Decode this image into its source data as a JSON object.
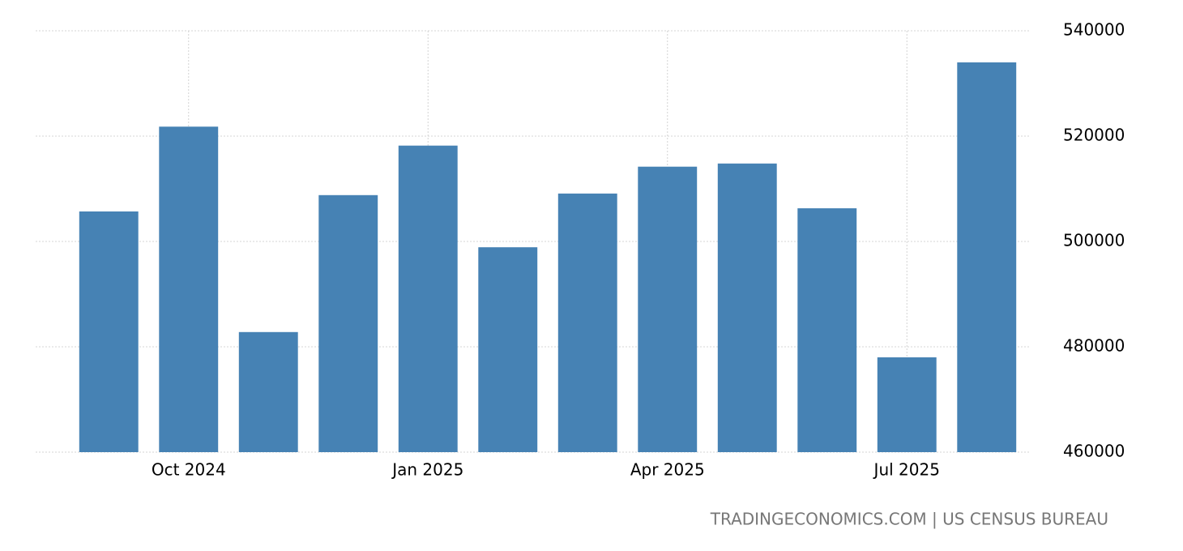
{
  "chart_data": {
    "type": "bar",
    "categories": [
      null,
      "Oct 2024",
      null,
      null,
      "Jan 2025",
      null,
      null,
      "Apr 2025",
      null,
      null,
      "Jul 2025",
      null
    ],
    "values": [
      505700,
      521800,
      482800,
      508800,
      518200,
      498900,
      509100,
      514200,
      514800,
      506300,
      478000,
      534000
    ],
    "color": "#4682b4",
    "ylim": [
      460000,
      540000
    ],
    "yticks": [
      460000,
      480000,
      500000,
      520000,
      540000
    ],
    "grid": true,
    "source": "TRADINGECONOMICS.COM | US CENSUS BUREAU"
  }
}
